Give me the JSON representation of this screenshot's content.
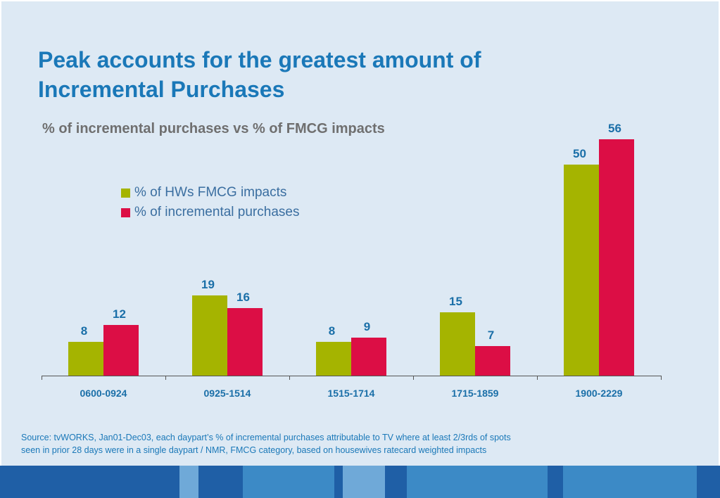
{
  "title_line1": "Peak accounts for the greatest amount of",
  "title_line2": "Incremental Purchases",
  "source_line1": "Source: tvWORKS, Jan01-Dec03, each daypart’s % of incremental purchases attributable to TV where at least 2/3rds of spots",
  "source_line2": "seen in prior 28 days were in a single daypart / NMR, FMCG category, based on housewives ratecard weighted impacts",
  "colors": {
    "title": "#1a78b8",
    "series_impacts": "#a5b400",
    "series_incremental": "#dc0e45",
    "value_labels": "#1a6fa8",
    "background": "#dde9f4"
  },
  "chart_data": {
    "type": "bar",
    "title": "% of incremental purchases vs % of FMCG impacts",
    "xlabel": "",
    "ylabel": "",
    "categories": [
      "0600-0924",
      "0925-1514",
      "1515-1714",
      "1715-1859",
      "1900-2229"
    ],
    "series": [
      {
        "name": "% of HWs FMCG impacts",
        "values": [
          8,
          19,
          8,
          15,
          50
        ]
      },
      {
        "name": "% of incremental purchases",
        "values": [
          12,
          16,
          9,
          7,
          56
        ]
      }
    ],
    "ylim": [
      0,
      56
    ],
    "grid": false,
    "legend": "top-left"
  }
}
